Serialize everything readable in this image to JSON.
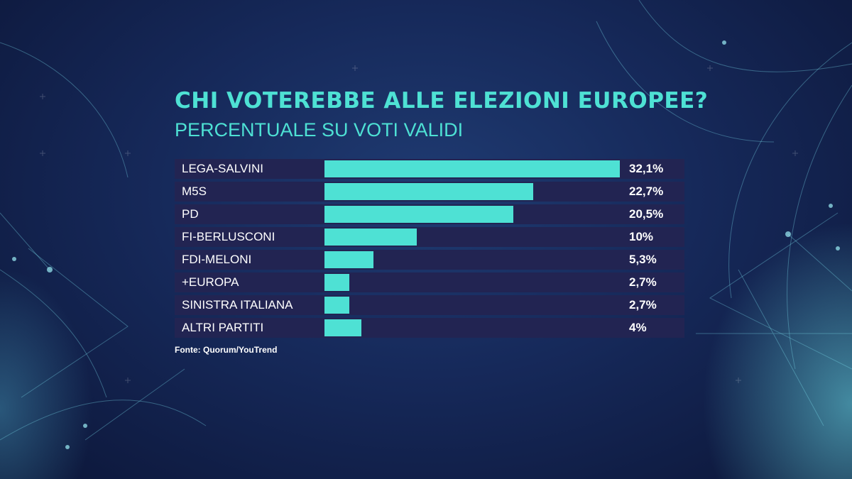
{
  "chart_data": {
    "type": "bar",
    "orientation": "horizontal",
    "title": "CHI VOTEREBBE ALLE ELEZIONI EUROPEE?",
    "subtitle": "PERCENTUALE SU VOTI VALIDI",
    "categories": [
      "LEGA-SALVINI",
      "M5S",
      "PD",
      "FI-BERLUSCONI",
      "FDI-MELONI",
      "+EUROPA",
      "SINISTRA ITALIANA",
      "ALTRI PARTITI"
    ],
    "values": [
      32.1,
      22.7,
      20.5,
      10,
      5.3,
      2.7,
      2.7,
      4
    ],
    "value_labels": [
      "32,1%",
      "22,7%",
      "20,5%",
      "10%",
      "5,3%",
      "2,7%",
      "2,7%",
      "4%"
    ],
    "unit": "%",
    "xlim": [
      0,
      32.1
    ],
    "grid": false,
    "legend": "none",
    "source": "Fonte: Quorum/YouTrend"
  },
  "colors": {
    "bar": "#4ee1d4",
    "row_background": "#222452",
    "title": "#4ee1d4",
    "text": "#ffffff",
    "page_background": "#1a3064"
  }
}
